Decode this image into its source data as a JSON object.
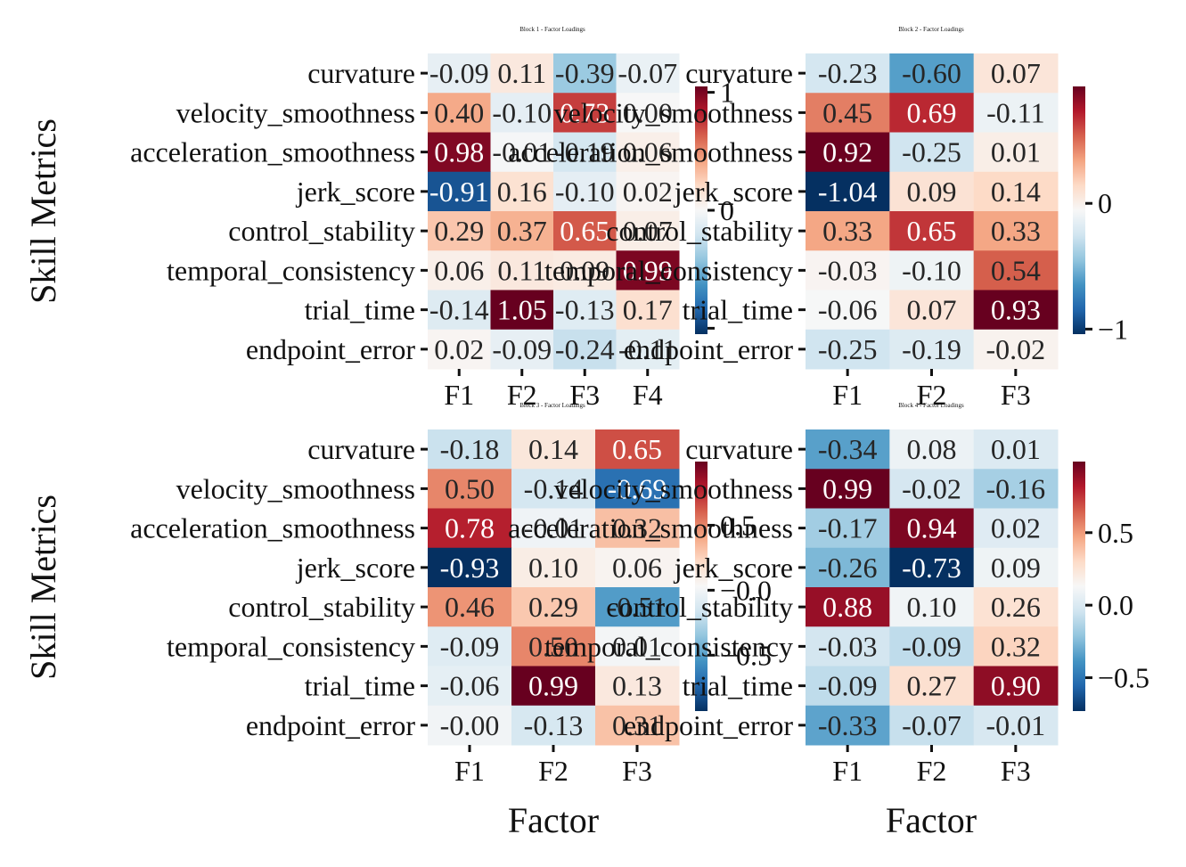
{
  "colorscale": {
    "name": "RdBu_r",
    "stops": [
      "#053061",
      "#2166ac",
      "#4393c3",
      "#92c5de",
      "#d1e5f0",
      "#f7f7f7",
      "#fddbc7",
      "#f4a582",
      "#d6604d",
      "#b2182b",
      "#67001f"
    ]
  },
  "chart_data": [
    {
      "type": "heatmap",
      "title": "Block 1 - Factor Loadings",
      "xlabel": "",
      "ylabel": "Skill Metrics",
      "rows": [
        "curvature",
        "velocity_smoothness",
        "acceleration_smoothness",
        "jerk_score",
        "control_stability",
        "temporal_consistency",
        "trial_time",
        "endpoint_error"
      ],
      "columns": [
        "F1",
        "F2",
        "F3",
        "F4"
      ],
      "values": [
        [
          -0.09,
          0.11,
          -0.39,
          -0.07
        ],
        [
          0.4,
          -0.1,
          0.73,
          0.0
        ],
        [
          0.98,
          -0.01,
          -0.19,
          0.06
        ],
        [
          -0.91,
          0.16,
          -0.1,
          0.02
        ],
        [
          0.29,
          0.37,
          0.65,
          0.07
        ],
        [
          0.06,
          0.11,
          0.09,
          0.99
        ],
        [
          -0.14,
          1.05,
          -0.13,
          0.17
        ],
        [
          0.02,
          -0.09,
          -0.24,
          -0.11
        ]
      ],
      "cell_labels": [
        [
          "-0.09",
          "0.11",
          "-0.39",
          "-0.07"
        ],
        [
          "0.40",
          "-0.10",
          "0.73",
          "0.00"
        ],
        [
          "0.98",
          "-0.01",
          "-0.19",
          "0.06"
        ],
        [
          "-0.91",
          "0.16",
          "-0.10",
          "0.02"
        ],
        [
          "0.29",
          "0.37",
          "0.65",
          "0.07"
        ],
        [
          "0.06",
          "0.11",
          "0.09",
          "0.99"
        ],
        [
          "-0.14",
          "1.05",
          "-0.13",
          "0.17"
        ],
        [
          "0.02",
          "-0.09",
          "-0.24",
          "-0.11"
        ]
      ],
      "vmin": -1.05,
      "vmax": 1.05,
      "colorbar_ticks": [
        1,
        0,
        -1
      ],
      "colorbar_tick_labels": [
        "1",
        "0",
        ""
      ]
    },
    {
      "type": "heatmap",
      "title": "Block 2 - Factor Loadings",
      "xlabel": "",
      "ylabel": "",
      "rows": [
        "curvature",
        "velocity_smoothness",
        "acceleration_smoothness",
        "jerk_score",
        "control_stability",
        "temporal_consistency",
        "trial_time",
        "endpoint_error"
      ],
      "columns": [
        "F1",
        "F2",
        "F3"
      ],
      "values": [
        [
          -0.23,
          -0.6,
          0.07
        ],
        [
          0.45,
          0.69,
          -0.11
        ],
        [
          0.92,
          -0.25,
          0.01
        ],
        [
          -1.04,
          0.09,
          0.14
        ],
        [
          0.33,
          0.65,
          0.33
        ],
        [
          -0.03,
          -0.1,
          0.54
        ],
        [
          -0.06,
          0.07,
          0.93
        ],
        [
          -0.25,
          -0.19,
          -0.02
        ]
      ],
      "cell_labels": [
        [
          "-0.23",
          "-0.60",
          "0.07"
        ],
        [
          "0.45",
          "0.69",
          "-0.11"
        ],
        [
          "0.92",
          "-0.25",
          "0.01"
        ],
        [
          "-1.04",
          "0.09",
          "0.14"
        ],
        [
          "0.33",
          "0.65",
          "0.33"
        ],
        [
          "-0.03",
          "-0.10",
          "0.54"
        ],
        [
          "-0.06",
          "0.07",
          "0.93"
        ],
        [
          "-0.25",
          "-0.19",
          "-0.02"
        ]
      ],
      "vmin": -1.04,
      "vmax": 0.93,
      "colorbar_ticks": [
        0,
        -1
      ],
      "colorbar_tick_labels": [
        "0",
        "−1"
      ]
    },
    {
      "type": "heatmap",
      "title": "Block 3 - Factor Loadings",
      "xlabel": "Factor",
      "ylabel": "Skill Metrics",
      "rows": [
        "curvature",
        "velocity_smoothness",
        "acceleration_smoothness",
        "jerk_score",
        "control_stability",
        "temporal_consistency",
        "trial_time",
        "endpoint_error"
      ],
      "columns": [
        "F1",
        "F2",
        "F3"
      ],
      "values": [
        [
          -0.18,
          0.14,
          0.65
        ],
        [
          0.5,
          -0.14,
          -0.69
        ],
        [
          0.78,
          -0.01,
          0.32
        ],
        [
          -0.93,
          0.1,
          0.06
        ],
        [
          0.46,
          0.29,
          -0.51
        ],
        [
          -0.09,
          0.5,
          0.01
        ],
        [
          -0.06,
          0.99,
          0.13
        ],
        [
          -0.0,
          -0.13,
          0.31
        ]
      ],
      "cell_labels": [
        [
          "-0.18",
          "0.14",
          "0.65"
        ],
        [
          "0.50",
          "-0.14",
          "-0.69"
        ],
        [
          "0.78",
          "-0.01",
          "0.32"
        ],
        [
          "-0.93",
          "0.10",
          "0.06"
        ],
        [
          "0.46",
          "0.29",
          "-0.51"
        ],
        [
          "-0.09",
          "0.50",
          "0.01"
        ],
        [
          "-0.06",
          "0.99",
          "0.13"
        ],
        [
          "-0.00",
          "-0.13",
          "0.31"
        ]
      ],
      "vmin": -0.93,
      "vmax": 0.99,
      "colorbar_ticks": [
        0.5,
        0.0,
        -0.5
      ],
      "colorbar_tick_labels": [
        "0.5",
        "−0.0",
        "−0.5"
      ]
    },
    {
      "type": "heatmap",
      "title": "Block 4 - Factor Loadings",
      "xlabel": "Factor",
      "ylabel": "",
      "rows": [
        "curvature",
        "velocity_smoothness",
        "acceleration_smoothness",
        "jerk_score",
        "control_stability",
        "temporal_consistency",
        "trial_time",
        "endpoint_error"
      ],
      "columns": [
        "F1",
        "F2",
        "F3"
      ],
      "values": [
        [
          -0.34,
          0.08,
          0.01
        ],
        [
          0.99,
          -0.02,
          -0.16
        ],
        [
          -0.17,
          0.94,
          0.02
        ],
        [
          -0.26,
          -0.73,
          0.09
        ],
        [
          0.88,
          0.1,
          0.26
        ],
        [
          -0.03,
          -0.09,
          0.32
        ],
        [
          -0.09,
          0.27,
          0.9
        ],
        [
          -0.33,
          -0.07,
          -0.01
        ]
      ],
      "cell_labels": [
        [
          "-0.34",
          "0.08",
          "0.01"
        ],
        [
          "0.99",
          "-0.02",
          "-0.16"
        ],
        [
          "-0.17",
          "0.94",
          "0.02"
        ],
        [
          "-0.26",
          "-0.73",
          "0.09"
        ],
        [
          "0.88",
          "0.10",
          "0.26"
        ],
        [
          "-0.03",
          "-0.09",
          "0.32"
        ],
        [
          "-0.09",
          "0.27",
          "0.90"
        ],
        [
          "-0.33",
          "-0.07",
          "-0.01"
        ]
      ],
      "vmin": -0.73,
      "vmax": 0.99,
      "colorbar_ticks": [
        0.5,
        0.0,
        -0.5
      ],
      "colorbar_tick_labels": [
        "0.5",
        "0.0",
        "−0.5"
      ]
    }
  ]
}
